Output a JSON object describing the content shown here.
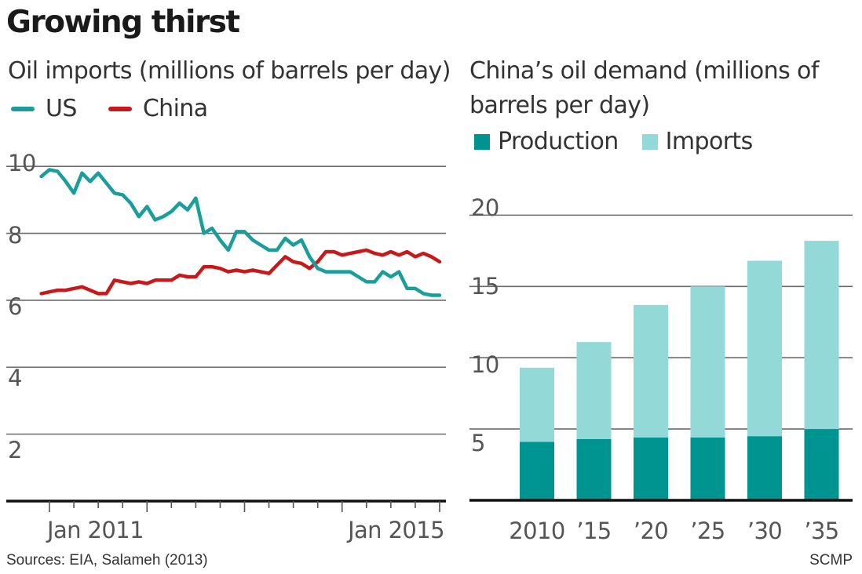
{
  "title": "Growing thirst",
  "left_chart": {
    "subtitle": "Oil imports (millions of barrels per day)",
    "legend": [
      {
        "label": "US",
        "color": "#1a9e9a"
      },
      {
        "label": "China",
        "color": "#c8191a"
      }
    ],
    "x_tick_labels": [
      "Jan 2011",
      "Jan 2015"
    ],
    "y_tick_labels": [
      "10",
      "8",
      "6",
      "4",
      "2"
    ]
  },
  "right_chart": {
    "subtitle_line1": "China’s oil demand (millions of",
    "subtitle_line2": "barrels per day)",
    "legend": [
      {
        "label": "Production",
        "color": "#009490"
      },
      {
        "label": "Imports",
        "color": "#92d9d8"
      }
    ],
    "y_tick_labels": [
      "20",
      "15",
      "10",
      "5"
    ]
  },
  "footer": {
    "sources": "Sources: EIA, Salameh (2013)",
    "credit": "SCMP"
  },
  "chart_data": [
    {
      "type": "line",
      "title": "Oil imports (millions of barrels per day)",
      "xlabel": "",
      "ylabel": "",
      "ylim": [
        0,
        10.8
      ],
      "x_ticks": [
        "Jan 2011",
        "Jan 2015"
      ],
      "y_ticks": [
        2,
        4,
        6,
        8,
        10
      ],
      "grid": true,
      "legend_placement": "top-left",
      "x_range": [
        "2010-12",
        "2015-02"
      ],
      "x": [
        "2010-12",
        "2011-01",
        "2011-02",
        "2011-03",
        "2011-04",
        "2011-05",
        "2011-06",
        "2011-07",
        "2011-08",
        "2011-09",
        "2011-10",
        "2011-11",
        "2011-12",
        "2012-01",
        "2012-02",
        "2012-03",
        "2012-04",
        "2012-05",
        "2012-06",
        "2012-07",
        "2012-08",
        "2012-09",
        "2012-10",
        "2012-11",
        "2012-12",
        "2013-01",
        "2013-02",
        "2013-03",
        "2013-04",
        "2013-05",
        "2013-06",
        "2013-07",
        "2013-08",
        "2013-09",
        "2013-10",
        "2013-11",
        "2013-12",
        "2014-01",
        "2014-02",
        "2014-03",
        "2014-04",
        "2014-05",
        "2014-06",
        "2014-07",
        "2014-08",
        "2014-09",
        "2014-10",
        "2014-11",
        "2014-12",
        "2015-01"
      ],
      "series": [
        {
          "name": "US",
          "color": "#1a9e9a",
          "values": [
            9.7,
            9.9,
            9.85,
            9.55,
            9.2,
            9.8,
            9.55,
            9.8,
            9.5,
            9.2,
            9.15,
            8.9,
            8.5,
            8.8,
            8.4,
            8.5,
            8.65,
            8.9,
            8.7,
            9.05,
            8.0,
            8.15,
            7.8,
            7.5,
            8.05,
            8.05,
            7.8,
            7.65,
            7.5,
            7.5,
            7.85,
            7.65,
            7.8,
            7.3,
            6.95,
            6.85,
            6.85,
            6.85,
            6.85,
            6.7,
            6.55,
            6.55,
            6.85,
            6.7,
            6.85,
            6.35,
            6.35,
            6.2,
            6.15,
            6.15
          ]
        },
        {
          "name": "China",
          "color": "#c8191a",
          "values": [
            6.2,
            6.25,
            6.3,
            6.3,
            6.35,
            6.4,
            6.3,
            6.2,
            6.2,
            6.6,
            6.55,
            6.5,
            6.55,
            6.5,
            6.6,
            6.6,
            6.6,
            6.75,
            6.7,
            6.7,
            7.0,
            7.0,
            6.95,
            6.85,
            6.9,
            6.85,
            6.9,
            6.85,
            6.8,
            7.05,
            7.3,
            7.15,
            7.1,
            6.95,
            7.15,
            7.45,
            7.45,
            7.35,
            7.4,
            7.45,
            7.5,
            7.4,
            7.35,
            7.45,
            7.35,
            7.45,
            7.3,
            7.4,
            7.3,
            7.15
          ]
        }
      ]
    },
    {
      "type": "bar",
      "stacked": true,
      "title": "China’s oil demand (millions of barrels per day)",
      "categories": [
        "2010",
        "’15",
        "’20",
        "’25",
        "’30",
        "’35"
      ],
      "ylim": [
        0,
        22
      ],
      "y_ticks": [
        5,
        10,
        15,
        20
      ],
      "grid": true,
      "legend_placement": "top-left",
      "series": [
        {
          "name": "Production",
          "color": "#009490",
          "values": [
            4.1,
            4.3,
            4.4,
            4.4,
            4.5,
            5.0
          ]
        },
        {
          "name": "Imports",
          "color": "#92d9d8",
          "values": [
            5.2,
            6.8,
            9.3,
            10.6,
            12.3,
            13.2
          ]
        }
      ]
    }
  ]
}
